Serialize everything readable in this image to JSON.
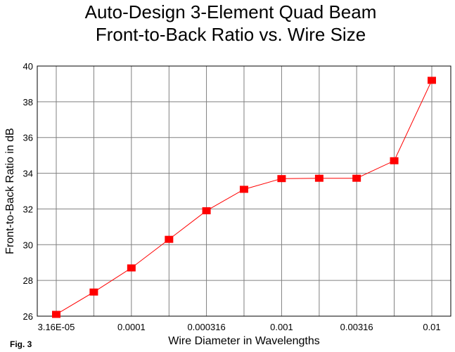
{
  "figure_label": "Fig. 3",
  "chart_data": {
    "type": "line",
    "title": [
      "Auto-Design 3-Element Quad Beam",
      "Front-to-Back Ratio vs. Wire Size"
    ],
    "xlabel": "Wire Diameter in Wavelengths",
    "ylabel": "Front-to-Back Ratio in dB",
    "x_scale": "log",
    "x_tick_labels": [
      "3.16E-05",
      "0.0001",
      "0.000316",
      "0.001",
      "0.00316",
      "0.01"
    ],
    "ylim": [
      26,
      40
    ],
    "y_ticks": [
      26,
      28,
      30,
      32,
      34,
      36,
      38,
      40
    ],
    "grid": true,
    "series": [
      {
        "x": [
          3.16e-05,
          5.62e-05,
          0.0001,
          0.000178,
          0.000316,
          0.000562,
          0.001,
          0.00178,
          0.00316,
          0.00562,
          0.01
        ],
        "y": [
          26.1,
          27.35,
          28.7,
          30.3,
          31.9,
          33.1,
          33.7,
          33.72,
          33.72,
          34.7,
          39.2
        ],
        "color": "#ff0000"
      }
    ]
  }
}
